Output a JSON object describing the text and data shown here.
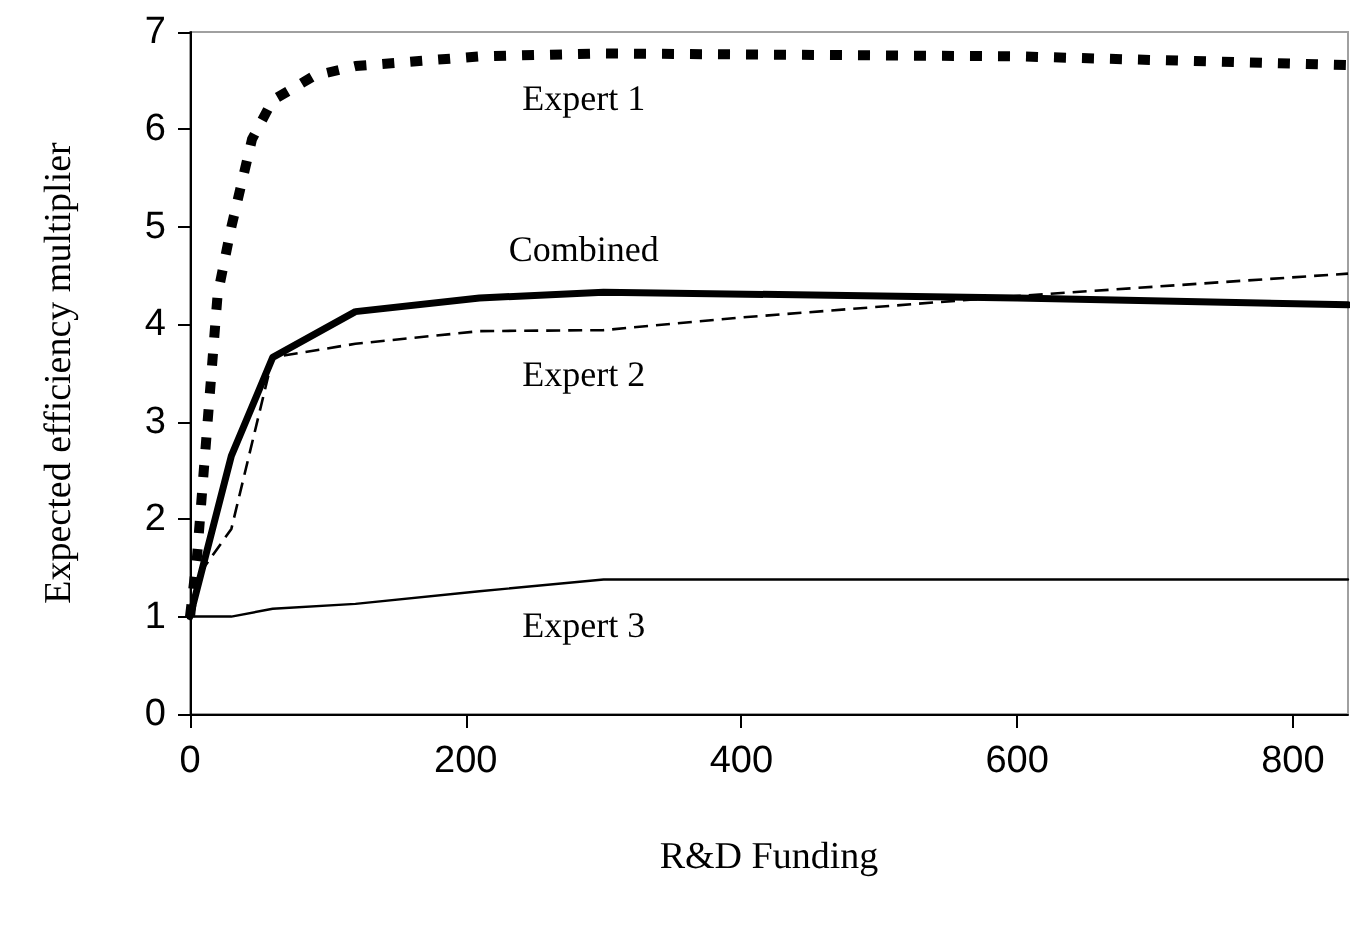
{
  "chart_data": {
    "type": "line",
    "xlabel": "R&D Funding",
    "ylabel": "Expected efficiency multiplier",
    "xlim": [
      0,
      840
    ],
    "xticks": [
      0,
      200,
      400,
      600,
      800
    ],
    "ylim": [
      0,
      7
    ],
    "yticks": [
      0,
      1,
      2,
      3,
      4,
      5,
      6,
      7
    ],
    "grid": false,
    "legend": false,
    "marker": "none",
    "series": [
      {
        "name": "Expert 1",
        "color": "#000000",
        "line_style": "dotted",
        "x": [
          0,
          5,
          10,
          20,
          30,
          45,
          60,
          90,
          120,
          210,
          300,
          600,
          840
        ],
        "values": [
          1,
          1.6,
          2.5,
          4.3,
          5.0,
          5.9,
          6.3,
          6.55,
          6.65,
          6.75,
          6.78,
          6.75,
          6.66
        ]
      },
      {
        "name": "Combined",
        "color": "#000000",
        "line_style": "solid",
        "x": [
          0,
          30,
          60,
          120,
          210,
          300,
          600,
          840
        ],
        "values": [
          1,
          2.65,
          3.66,
          4.13,
          4.27,
          4.33,
          4.27,
          4.2
        ]
      },
      {
        "name": "Expert 2",
        "color": "#000000",
        "line_style": "dashed",
        "x": [
          0,
          10,
          30,
          60,
          120,
          210,
          300,
          400,
          600,
          840
        ],
        "values": [
          1,
          1.5,
          1.9,
          3.66,
          3.8,
          3.93,
          3.94,
          4.07,
          4.29,
          4.52
        ]
      },
      {
        "name": "Expert 3",
        "color": "#000000",
        "line_style": "solid",
        "x": [
          0,
          30,
          60,
          120,
          210,
          300,
          840
        ],
        "values": [
          1,
          1,
          1.08,
          1.13,
          1.26,
          1.38,
          1.38
        ]
      }
    ]
  }
}
